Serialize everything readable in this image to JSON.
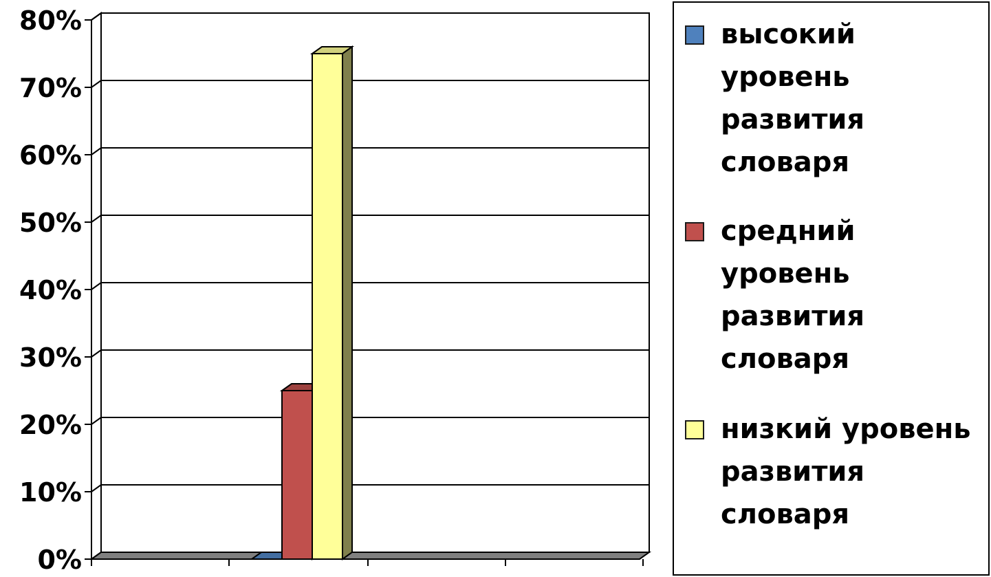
{
  "chart_data": {
    "type": "bar",
    "categories": [
      ""
    ],
    "series": [
      {
        "name": "высокий уровень развития словаря",
        "values": [
          0
        ],
        "color": "#4F81BD"
      },
      {
        "name": "средний уровень развития словаря",
        "values": [
          25
        ],
        "color": "#C0504D"
      },
      {
        "name": "низкий уровень развития словаря",
        "values": [
          75
        ],
        "color": "#FFFF99"
      }
    ],
    "y_ticks": [
      "0%",
      "10%",
      "20%",
      "30%",
      "40%",
      "50%",
      "60%",
      "70%",
      "80%"
    ],
    "ylim": [
      0,
      80
    ],
    "y_unit": "%",
    "grid": true,
    "three_d": true,
    "legend_position": "right",
    "title": "",
    "xlabel": "",
    "ylabel": ""
  },
  "legend": {
    "items": [
      {
        "label": "высокий уровень развития словаря"
      },
      {
        "label": "средний уровень развития словаря"
      },
      {
        "label": "низкий уровень развития словаря"
      }
    ]
  }
}
